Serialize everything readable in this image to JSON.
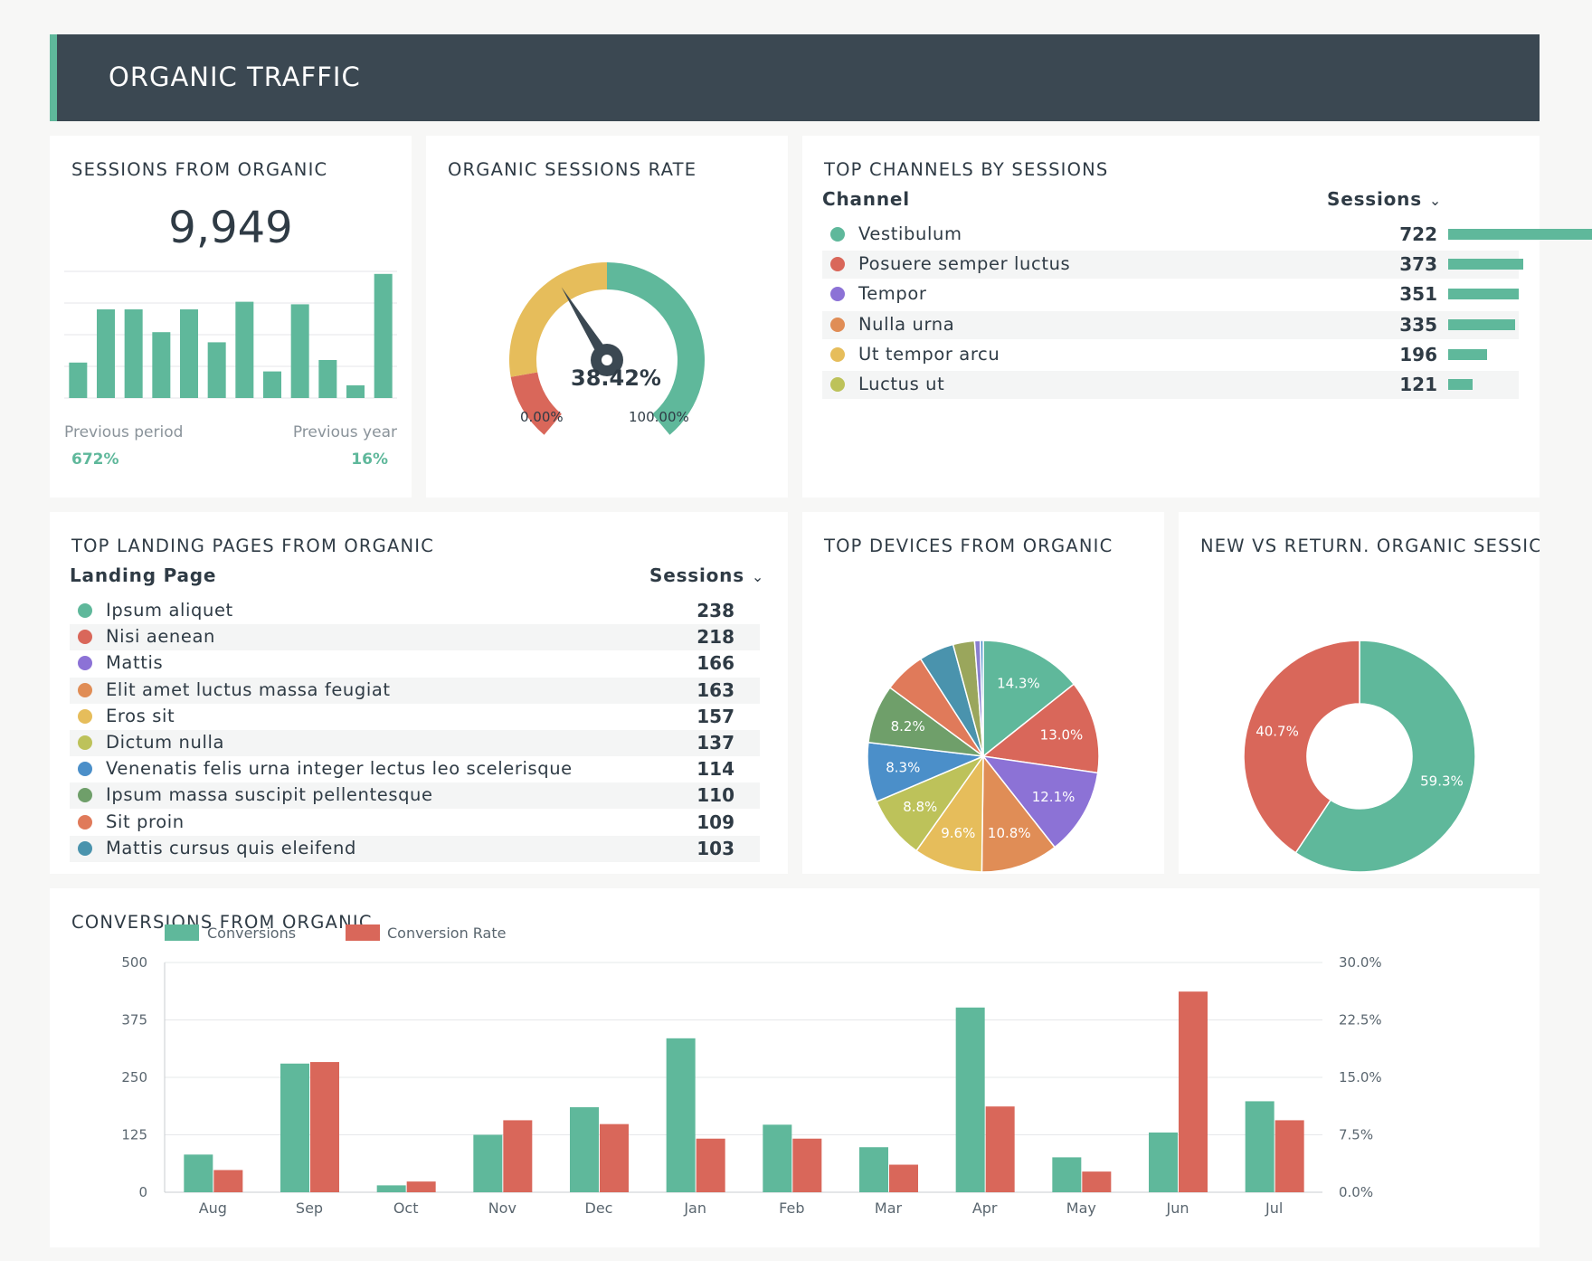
{
  "header": {
    "title": "ORGANIC TRAFFIC"
  },
  "colors": {
    "teal": "#5fb89b",
    "red": "#d9675a",
    "purple": "#8c72d6",
    "orange": "#e08d56",
    "yellow": "#e6bd5b",
    "lime": "#bdc25a",
    "blue": "#4b8fc9",
    "green": "#6f9f6a",
    "steel": "#4a93ad",
    "olive": "#9aa65c"
  },
  "sessions": {
    "title": "SESSIONS FROM ORGANIC",
    "value": "9,949",
    "previous_period_label": "Previous period",
    "previous_year_label": "Previous year",
    "previous_period_value": "672%",
    "previous_year_value": "16%",
    "chart_data": {
      "type": "bar",
      "values": [
        28,
        70,
        70,
        52,
        70,
        44,
        76,
        21,
        74,
        30,
        10,
        98
      ],
      "ylim": [
        0,
        100
      ],
      "grid": true
    }
  },
  "rate": {
    "title": "ORGANIC SESSIONS RATE",
    "value": "38.42%",
    "min_label": "0.00%",
    "max_label": "100.00%",
    "fraction": 0.3842
  },
  "channels": {
    "title": "TOP CHANNELS BY SESSIONS",
    "col_channel": "Channel",
    "col_sessions": "Sessions",
    "rows": [
      {
        "label": "Vestibulum",
        "value": "722",
        "num": 722,
        "color": "#5fb89b"
      },
      {
        "label": "Posuere semper luctus",
        "value": "373",
        "num": 373,
        "color": "#d9675a"
      },
      {
        "label": "Tempor",
        "value": "351",
        "num": 351,
        "color": "#8c72d6"
      },
      {
        "label": "Nulla urna",
        "value": "335",
        "num": 335,
        "color": "#e08d56"
      },
      {
        "label": "Ut tempor arcu",
        "value": "196",
        "num": 196,
        "color": "#e6bd5b"
      },
      {
        "label": "Luctus ut",
        "value": "121",
        "num": 121,
        "color": "#bdc25a"
      }
    ]
  },
  "landing": {
    "title": "TOP LANDING PAGES FROM ORGANIC",
    "col_page": "Landing Page",
    "col_sessions": "Sessions",
    "rows": [
      {
        "label": "Ipsum aliquet",
        "value": "238",
        "color": "#5fb89b"
      },
      {
        "label": "Nisi aenean",
        "value": "218",
        "color": "#d9675a"
      },
      {
        "label": "Mattis",
        "value": "166",
        "color": "#8c72d6"
      },
      {
        "label": "Elit amet luctus massa feugiat",
        "value": "163",
        "color": "#e08d56"
      },
      {
        "label": "Eros sit",
        "value": "157",
        "color": "#e6bd5b"
      },
      {
        "label": "Dictum nulla",
        "value": "137",
        "color": "#bdc25a"
      },
      {
        "label": "Venenatis felis urna integer lectus leo scelerisque",
        "value": "114",
        "color": "#4b8fc9"
      },
      {
        "label": "Ipsum massa suscipit pellentesque",
        "value": "110",
        "color": "#6f9f6a"
      },
      {
        "label": "Sit proin",
        "value": "109",
        "color": "#e07a5a"
      },
      {
        "label": "Mattis cursus quis eleifend",
        "value": "103",
        "color": "#4a93ad"
      }
    ]
  },
  "devices": {
    "title": "TOP DEVICES FROM ORGANIC",
    "chart_data": {
      "type": "pie",
      "slices": [
        {
          "value": 14.3,
          "label": "14.3%",
          "color": "#5fb89b"
        },
        {
          "value": 13.0,
          "label": "13.0%",
          "color": "#d9675a"
        },
        {
          "value": 12.1,
          "label": "12.1%",
          "color": "#8c72d6"
        },
        {
          "value": 10.8,
          "label": "10.8%",
          "color": "#e08d56"
        },
        {
          "value": 9.6,
          "label": "9.6%",
          "color": "#e6bd5b"
        },
        {
          "value": 8.8,
          "label": "8.8%",
          "color": "#bdc25a"
        },
        {
          "value": 8.3,
          "label": "8.3%",
          "color": "#4b8fc9"
        },
        {
          "value": 8.2,
          "label": "8.2%",
          "color": "#6f9f6a"
        },
        {
          "value": 5.8,
          "label": "",
          "color": "#e07a5a"
        },
        {
          "value": 4.9,
          "label": "",
          "color": "#4a93ad"
        },
        {
          "value": 3.0,
          "label": "",
          "color": "#9aa65c"
        },
        {
          "value": 0.8,
          "label": "",
          "color": "#8a7fd0"
        },
        {
          "value": 0.4,
          "label": "",
          "color": "#4b8fc9"
        }
      ]
    }
  },
  "newret": {
    "title": "NEW VS RETURN. ORGANIC SESSIC",
    "chart_data": {
      "type": "pie",
      "donut": true,
      "slices": [
        {
          "value": 59.3,
          "label": "59.3%",
          "color": "#5fb89b"
        },
        {
          "value": 40.7,
          "label": "40.7%",
          "color": "#d9675a"
        }
      ]
    }
  },
  "conversions": {
    "title": "CONVERSIONS FROM ORGANIC",
    "legend_conv": "Conversions",
    "legend_rate": "Conversion Rate",
    "chart_data": {
      "type": "bar",
      "categories": [
        "Aug",
        "Sep",
        "Oct",
        "Nov",
        "Dec",
        "Jan",
        "Feb",
        "Mar",
        "Apr",
        "May",
        "Jun",
        "Jul"
      ],
      "series": [
        {
          "name": "Conversions",
          "axis": "left",
          "values": [
            82,
            280,
            15,
            125,
            185,
            335,
            147,
            98,
            402,
            76,
            130,
            198
          ]
        },
        {
          "name": "Conversion Rate",
          "axis": "right",
          "values": [
            2.9,
            17.0,
            1.4,
            9.4,
            8.9,
            7.0,
            7.0,
            3.6,
            11.2,
            2.7,
            26.2,
            9.4
          ]
        }
      ],
      "y_left": {
        "range": [
          0,
          500
        ],
        "ticks": [
          "0",
          "125",
          "250",
          "375",
          "500"
        ]
      },
      "y_right": {
        "range": [
          0,
          30
        ],
        "ticks": [
          "0.0%",
          "7.5%",
          "15.0%",
          "22.5%",
          "30.0%"
        ]
      },
      "legend": "top-left",
      "grid": true
    }
  }
}
